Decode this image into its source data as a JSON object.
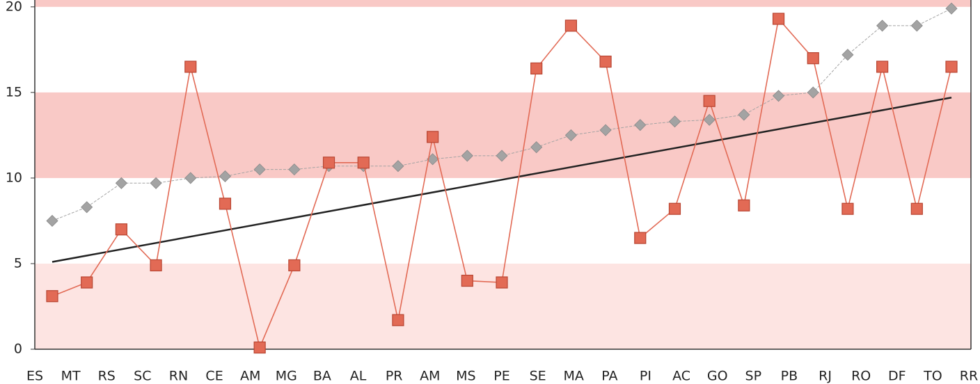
{
  "chart_data": {
    "type": "line",
    "categories": [
      "ES",
      "MT",
      "RS",
      "SC",
      "RN",
      "CE",
      "AM",
      "MG",
      "BA",
      "AL",
      "PR",
      "AM",
      "MS",
      "PE",
      "SE",
      "MA",
      "PA",
      "PI",
      "AC",
      "GO",
      "SP",
      "PB",
      "RJ",
      "RO",
      "DF",
      "TO",
      "RR"
    ],
    "series": [
      {
        "color": "#a3a3a3",
        "marker": "diamond",
        "dashed": true,
        "values": [
          7.5,
          8.3,
          9.7,
          9.7,
          10.0,
          10.1,
          10.5,
          10.5,
          10.7,
          10.7,
          10.7,
          11.1,
          11.3,
          11.3,
          11.8,
          12.5,
          12.8,
          13.1,
          13.3,
          13.4,
          13.7,
          14.8,
          15.0,
          17.2,
          18.9,
          18.9,
          19.9
        ]
      },
      {
        "color": "#e26a55",
        "marker": "square",
        "dashed": false,
        "values": [
          3.1,
          3.9,
          7.0,
          4.9,
          16.5,
          8.5,
          0.1,
          4.9,
          10.9,
          10.9,
          1.7,
          12.4,
          4.0,
          3.9,
          16.4,
          18.9,
          16.8,
          6.5,
          8.2,
          14.5,
          8.4,
          19.3,
          17.0,
          8.2,
          16.5,
          8.2,
          16.5
        ]
      }
    ],
    "trend": {
      "color": "#222222",
      "values": [
        5.1,
        14.7
      ]
    },
    "bands": [
      {
        "from": 0,
        "to": 5,
        "color": "#fde4e2"
      },
      {
        "from": 10,
        "to": 15,
        "color": "#f9c9c6"
      },
      {
        "from": 20,
        "to": 20.4,
        "color": "#f9c9c6"
      }
    ],
    "ylim": [
      0,
      20.4
    ],
    "yticks": [
      0,
      5,
      10,
      15,
      20
    ],
    "grid": false
  }
}
